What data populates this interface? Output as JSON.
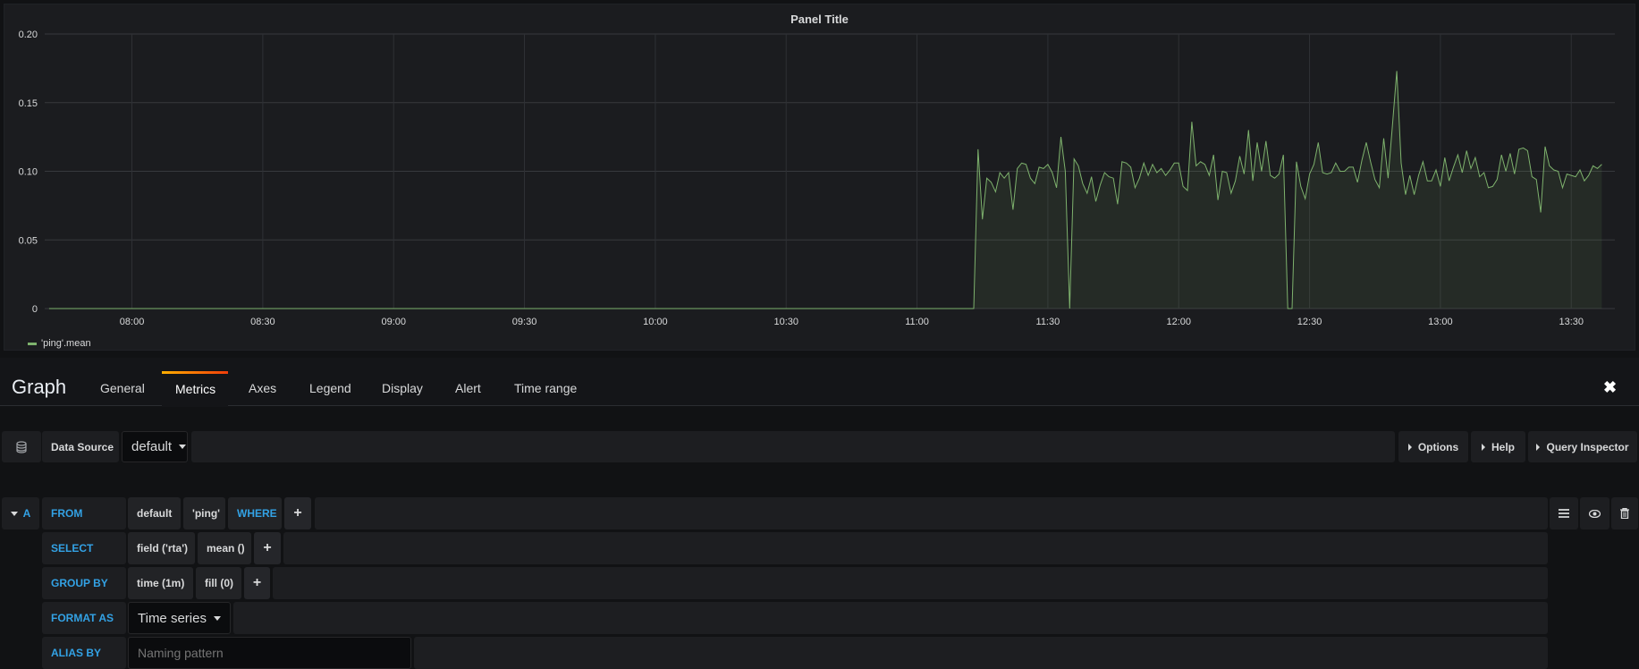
{
  "panel": {
    "title": "Panel Title",
    "legend": "'ping'.mean"
  },
  "chart_data": {
    "type": "area",
    "title": "Panel Title",
    "xlim": [
      "07:40",
      "13:40"
    ],
    "ylim": [
      0,
      0.2
    ],
    "yticks": [
      "0",
      "0.05",
      "0.10",
      "0.15",
      "0.20"
    ],
    "xticks": [
      "08:00",
      "08:30",
      "09:00",
      "09:30",
      "10:00",
      "10:30",
      "11:00",
      "11:30",
      "12:00",
      "12:30",
      "13:00",
      "13:30"
    ],
    "grid": true,
    "legend_position": "bottom-left",
    "series": [
      {
        "name": "'ping'.mean",
        "color": "#7eb26d",
        "points": [
          [
            "07:41",
            0
          ],
          [
            "11:13",
            0
          ],
          [
            "11:14",
            0.116
          ],
          [
            "11:15",
            0.065
          ],
          [
            "11:16",
            0.095
          ],
          [
            "11:17",
            0.092
          ],
          [
            "11:18",
            0.085
          ],
          [
            "11:19",
            0.099
          ],
          [
            "11:20",
            0.095
          ],
          [
            "11:21",
            0.099
          ],
          [
            "11:22",
            0.072
          ],
          [
            "11:23",
            0.102
          ],
          [
            "11:24",
            0.106
          ],
          [
            "11:25",
            0.105
          ],
          [
            "11:26",
            0.095
          ],
          [
            "11:27",
            0.091
          ],
          [
            "11:28",
            0.103
          ],
          [
            "11:29",
            0.102
          ],
          [
            "11:30",
            0.105
          ],
          [
            "11:31",
            0.099
          ],
          [
            "11:32",
            0.088
          ],
          [
            "11:33",
            0.125
          ],
          [
            "11:34",
            0.1
          ],
          [
            "11:35",
            0
          ],
          [
            "11:36",
            0.109
          ],
          [
            "11:37",
            0.104
          ],
          [
            "11:38",
            0.091
          ],
          [
            "11:39",
            0.084
          ],
          [
            "11:40",
            0.096
          ],
          [
            "11:41",
            0.078
          ],
          [
            "11:42",
            0.09
          ],
          [
            "11:43",
            0.099
          ],
          [
            "11:44",
            0.096
          ],
          [
            "11:45",
            0.095
          ],
          [
            "11:46",
            0.076
          ],
          [
            "11:47",
            0.107
          ],
          [
            "11:48",
            0.106
          ],
          [
            "11:49",
            0.103
          ],
          [
            "11:50",
            0.088
          ],
          [
            "11:51",
            0.095
          ],
          [
            "11:52",
            0.106
          ],
          [
            "11:53",
            0.097
          ],
          [
            "11:54",
            0.105
          ],
          [
            "11:55",
            0.099
          ],
          [
            "11:56",
            0.102
          ],
          [
            "11:57",
            0.097
          ],
          [
            "11:58",
            0.101
          ],
          [
            "11:59",
            0.106
          ],
          [
            "12:00",
            0.106
          ],
          [
            "12:01",
            0.089
          ],
          [
            "12:02",
            0.086
          ],
          [
            "12:03",
            0.136
          ],
          [
            "12:04",
            0.104
          ],
          [
            "12:05",
            0.107
          ],
          [
            "12:06",
            0.105
          ],
          [
            "12:07",
            0.097
          ],
          [
            "12:08",
            0.112
          ],
          [
            "12:09",
            0.079
          ],
          [
            "12:10",
            0.1
          ],
          [
            "12:11",
            0.099
          ],
          [
            "12:12",
            0.084
          ],
          [
            "12:13",
            0.093
          ],
          [
            "12:14",
            0.111
          ],
          [
            "12:15",
            0.098
          ],
          [
            "12:16",
            0.13
          ],
          [
            "12:17",
            0.093
          ],
          [
            "12:18",
            0.121
          ],
          [
            "12:19",
            0.1
          ],
          [
            "12:20",
            0.122
          ],
          [
            "12:21",
            0.097
          ],
          [
            "12:22",
            0.095
          ],
          [
            "12:23",
            0.098
          ],
          [
            "12:24",
            0.112
          ],
          [
            "12:25",
            0
          ],
          [
            "12:26",
            0
          ],
          [
            "12:27",
            0.107
          ],
          [
            "12:28",
            0.089
          ],
          [
            "12:29",
            0.08
          ],
          [
            "12:30",
            0.098
          ],
          [
            "12:31",
            0.105
          ],
          [
            "12:32",
            0.121
          ],
          [
            "12:33",
            0.099
          ],
          [
            "12:34",
            0.098
          ],
          [
            "12:35",
            0.099
          ],
          [
            "12:36",
            0.106
          ],
          [
            "12:37",
            0.1
          ],
          [
            "12:38",
            0.1
          ],
          [
            "12:39",
            0.103
          ],
          [
            "12:40",
            0.103
          ],
          [
            "12:41",
            0.092
          ],
          [
            "12:42",
            0.108
          ],
          [
            "12:43",
            0.121
          ],
          [
            "12:44",
            0.107
          ],
          [
            "12:45",
            0.094
          ],
          [
            "12:46",
            0.088
          ],
          [
            "12:47",
            0.124
          ],
          [
            "12:48",
            0.095
          ],
          [
            "12:49",
            0.133
          ],
          [
            "12:50",
            0.173
          ],
          [
            "12:51",
            0.106
          ],
          [
            "12:52",
            0.083
          ],
          [
            "12:53",
            0.097
          ],
          [
            "12:54",
            0.083
          ],
          [
            "12:55",
            0.097
          ],
          [
            "12:56",
            0.107
          ],
          [
            "12:57",
            0.093
          ],
          [
            "12:58",
            0.093
          ],
          [
            "12:59",
            0.101
          ],
          [
            "13:00",
            0.089
          ],
          [
            "13:01",
            0.11
          ],
          [
            "13:02",
            0.093
          ],
          [
            "13:03",
            0.103
          ],
          [
            "13:04",
            0.112
          ],
          [
            "13:05",
            0.099
          ],
          [
            "13:06",
            0.115
          ],
          [
            "13:07",
            0.102
          ],
          [
            "13:08",
            0.11
          ],
          [
            "13:09",
            0.096
          ],
          [
            "13:10",
            0.099
          ],
          [
            "13:11",
            0.088
          ],
          [
            "13:12",
            0.089
          ],
          [
            "13:13",
            0.094
          ],
          [
            "13:14",
            0.112
          ],
          [
            "13:15",
            0.1
          ],
          [
            "13:16",
            0.113
          ],
          [
            "13:17",
            0.098
          ],
          [
            "13:18",
            0.116
          ],
          [
            "13:19",
            0.117
          ],
          [
            "13:20",
            0.115
          ],
          [
            "13:21",
            0.096
          ],
          [
            "13:22",
            0.094
          ],
          [
            "13:23",
            0.07
          ],
          [
            "13:24",
            0.118
          ],
          [
            "13:25",
            0.104
          ],
          [
            "13:26",
            0.101
          ],
          [
            "13:27",
            0.1
          ],
          [
            "13:28",
            0.088
          ],
          [
            "13:29",
            0.098
          ],
          [
            "13:30",
            0.097
          ],
          [
            "13:31",
            0.096
          ],
          [
            "13:32",
            0.101
          ],
          [
            "13:33",
            0.093
          ],
          [
            "13:34",
            0.097
          ],
          [
            "13:35",
            0.104
          ],
          [
            "13:36",
            0.102
          ],
          [
            "13:37",
            0.105
          ]
        ]
      }
    ]
  },
  "editor": {
    "title": "Graph",
    "tabs": [
      "General",
      "Metrics",
      "Axes",
      "Legend",
      "Display",
      "Alert",
      "Time range"
    ],
    "active_tab": "Metrics",
    "close": "✖",
    "datasource": {
      "label": "Data Source",
      "value": "default",
      "icon": "database-icon"
    },
    "buttons": {
      "options": "Options",
      "help": "Help",
      "inspector": "Query Inspector"
    },
    "query": {
      "ref": "A",
      "from": {
        "label": "FROM",
        "db": "default",
        "measurement": "'ping'",
        "where": "WHERE",
        "add": "+"
      },
      "select": {
        "label": "SELECT",
        "field": "field ('rta')",
        "agg": "mean ()",
        "add": "+"
      },
      "group": {
        "label": "GROUP BY",
        "time": "time (1m)",
        "fill": "fill (0)",
        "add": "+"
      },
      "format": {
        "label": "FORMAT AS",
        "value": "Time series"
      },
      "alias": {
        "label": "ALIAS BY",
        "placeholder": "Naming pattern"
      },
      "icons": [
        "menu-icon",
        "eye-icon",
        "trash-icon"
      ]
    },
    "accent": "#33a2e5"
  }
}
